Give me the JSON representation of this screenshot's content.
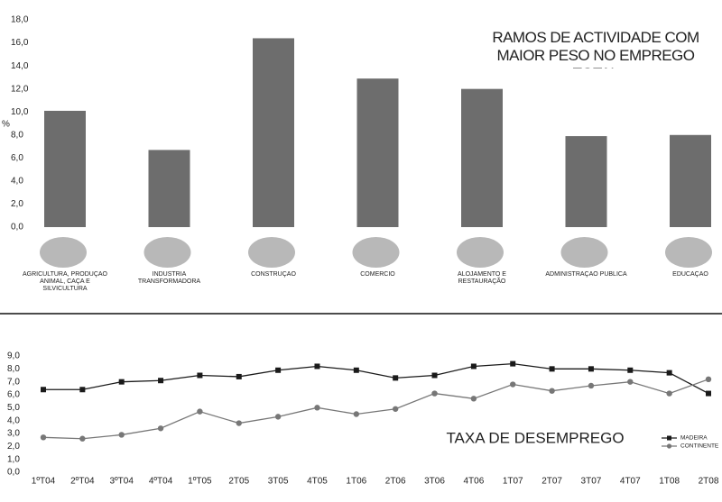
{
  "chart_data": [
    {
      "type": "bar",
      "title": "RAMOS DE ACTIVIDADE COM MAIOR PESO NO EMPREGO TOTAL",
      "y_label": "%",
      "categories": [
        "AGRICULTURA, PRODUÇÃO ANIMAL, CAÇA E SILVICULTURA",
        "INDUSTRIA TRANSFORMADORA",
        "CONSTRUÇÃO",
        "COMÉRCIO",
        "ALOJAMENTO E RESTAURAÇÃO",
        "ADMINISTRAÇÃO PÚBLICA",
        "EDUCAÇÃO"
      ],
      "values": [
        10.1,
        6.7,
        16.4,
        12.9,
        12.0,
        7.9,
        8.0
      ],
      "color": "#6d6d6d",
      "ylim": [
        0,
        18
      ],
      "yticks": [
        {
          "value": 0,
          "label": "0,0"
        },
        {
          "value": 2,
          "label": "2,0"
        },
        {
          "value": 4,
          "label": "4,0"
        },
        {
          "value": 6,
          "label": "6,0"
        },
        {
          "value": 8,
          "label": "8,0"
        },
        {
          "value": 10,
          "label": "10,0"
        },
        {
          "value": 12,
          "label": "12,0"
        },
        {
          "value": 14,
          "label": "14,0"
        },
        {
          "value": 16,
          "label": "16,0"
        },
        {
          "value": 18,
          "label": "18,0"
        }
      ],
      "grid": false
    },
    {
      "type": "line",
      "title": "TAXA DE DESEMPREGO",
      "categories": [
        "1ºT04",
        "2ºT04",
        "3ºT04",
        "4ºT04",
        "1ºT05",
        "2T05",
        "3T05",
        "4T05",
        "1T06",
        "2T06",
        "3T06",
        "4T06",
        "1T07",
        "2T07",
        "3T07",
        "4T07",
        "1T08",
        "2T08"
      ],
      "series": [
        {
          "name": "MADEIRA",
          "color": "#1a1a1a",
          "marker": "square",
          "values": [
            6.4,
            6.4,
            7.0,
            7.1,
            7.5,
            7.4,
            7.9,
            8.2,
            7.9,
            7.3,
            7.5,
            8.2,
            8.4,
            8.0,
            8.0,
            7.9,
            7.7,
            6.1
          ]
        },
        {
          "name": "CONTINENTE",
          "color": "#777777",
          "marker": "circle",
          "values": [
            2.7,
            2.6,
            2.9,
            3.4,
            4.7,
            3.8,
            4.3,
            5.0,
            4.5,
            4.9,
            6.1,
            5.7,
            6.8,
            6.3,
            6.7,
            7.0,
            6.1,
            7.2
          ]
        }
      ],
      "ylim": [
        0,
        9
      ],
      "yticks": [
        {
          "value": 0,
          "label": "0,0"
        },
        {
          "value": 1,
          "label": "1,0"
        },
        {
          "value": 2,
          "label": "2,0"
        },
        {
          "value": 3,
          "label": "3,0"
        },
        {
          "value": 4,
          "label": "4,0"
        },
        {
          "value": 5,
          "label": "5,0"
        },
        {
          "value": 6,
          "label": "6,0"
        },
        {
          "value": 7,
          "label": "7,0"
        },
        {
          "value": 8,
          "label": "8,0"
        },
        {
          "value": 9,
          "label": "9,0"
        }
      ],
      "grid": false,
      "legend": "lower right"
    }
  ]
}
